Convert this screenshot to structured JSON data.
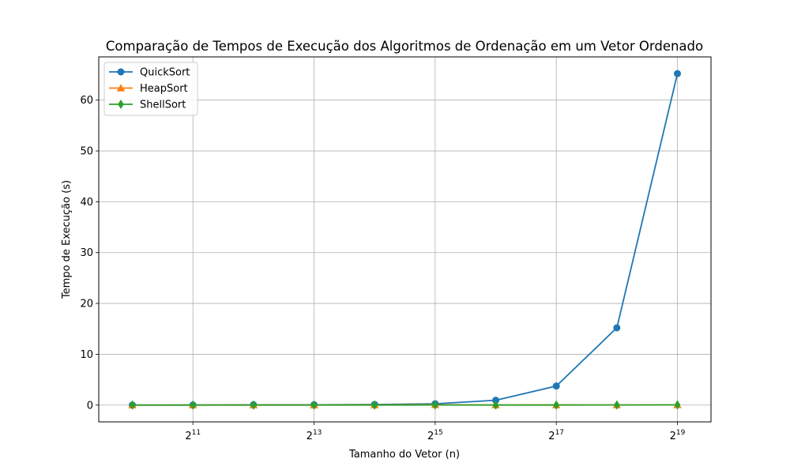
{
  "chart_data": {
    "type": "line",
    "title": "Comparação de Tempos de Execução dos Algoritmos de Ordenação em um Vetor Ordenado",
    "xlabel": "Tamanho do Vetor (n)",
    "ylabel": "Tempo de Execução (s)",
    "x_scale": "log2",
    "x": [
      1024,
      2048,
      4096,
      8192,
      16384,
      32768,
      65536,
      131072,
      262144,
      524288
    ],
    "xlim": [
      697,
      770000
    ],
    "ylim": [
      -3.3,
      68.5
    ],
    "x_ticks": [
      {
        "value": 2048,
        "base": "2",
        "exp": "11"
      },
      {
        "value": 8192,
        "base": "2",
        "exp": "13"
      },
      {
        "value": 32768,
        "base": "2",
        "exp": "15"
      },
      {
        "value": 131072,
        "base": "2",
        "exp": "17"
      },
      {
        "value": 524288,
        "base": "2",
        "exp": "19"
      }
    ],
    "y_ticks": [
      0,
      10,
      20,
      30,
      40,
      50,
      60
    ],
    "grid": true,
    "legend_position": "top-left",
    "series": [
      {
        "name": "QuickSort",
        "color": "#1f77b4",
        "marker": "circle",
        "values": [
          0.004,
          0.015,
          0.06,
          0.065,
          0.12,
          0.25,
          0.95,
          3.75,
          15.2,
          65.2
        ]
      },
      {
        "name": "HeapSort",
        "color": "#ff7f0e",
        "marker": "triangle",
        "values": [
          0.002,
          0.004,
          0.008,
          0.017,
          0.035,
          0.075,
          0.02,
          0.03,
          0.02,
          0.04
        ]
      },
      {
        "name": "ShellSort",
        "color": "#2ca02c",
        "marker": "diamond",
        "values": [
          0.0,
          0.001,
          0.002,
          0.004,
          0.008,
          0.016,
          0.01,
          0.01,
          0.02,
          0.04
        ]
      }
    ]
  }
}
